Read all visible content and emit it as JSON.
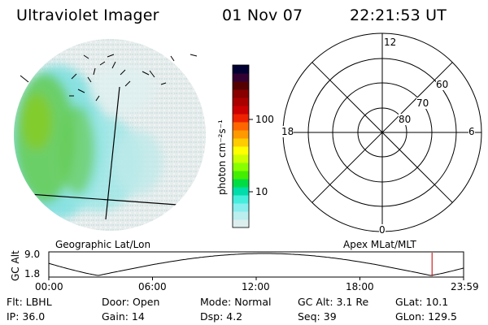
{
  "header": {
    "instrument": "Ultraviolet Imager",
    "date": "01 Nov 07",
    "time": "22:21:53 UT"
  },
  "colorbar": {
    "unit_label": "photon cm⁻²s⁻¹",
    "ticks": [
      "100",
      "10"
    ],
    "colors": [
      "#000033",
      "#330033",
      "#550000",
      "#880000",
      "#aa0000",
      "#cc0000",
      "#ee2200",
      "#ff6600",
      "#ff9900",
      "#ffcc00",
      "#ffff00",
      "#ccff00",
      "#88ff00",
      "#44ee00",
      "#00dd44",
      "#00ddaa",
      "#44eedd",
      "#88eeee",
      "#bbeeee",
      "#ddeeee"
    ]
  },
  "polar": {
    "mlt_labels": [
      "12",
      "18",
      "6",
      "0"
    ],
    "mlat_labels": [
      "60",
      "70",
      "80"
    ]
  },
  "labels": {
    "left_caption": "Geographic Lat/Lon",
    "right_caption": "Apex  MLat/MLT"
  },
  "altitude_plot": {
    "ylabel": "GC Alt",
    "ytick_top": "9.0",
    "ytick_bottom": "1.8",
    "x_ticks": [
      "00:00",
      "06:00",
      "12:00",
      "18:00",
      "23:59"
    ],
    "current_time_fraction": 0.924
  },
  "status": {
    "filter": "Flt: LBHL",
    "door": "Door: Open",
    "mode": "Mode: Normal",
    "gc_alt": "GC Alt: 3.1 Re",
    "glat": "GLat:  10.1",
    "ip": "IP: 36.0",
    "gain": "Gain: 14",
    "dsp": "Dsp:     4.2",
    "seq": "Seq: 39",
    "glon": "GLon: 129.5"
  }
}
